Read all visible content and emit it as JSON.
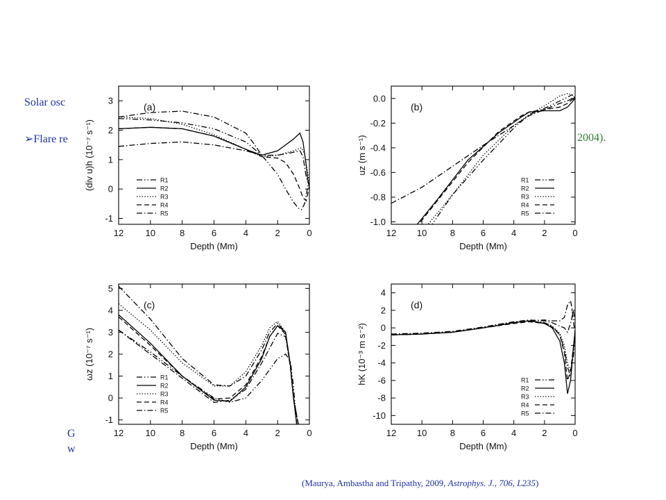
{
  "background_text": {
    "line1": "Solar osc",
    "line2_bullet": "➢",
    "line2_prefix": "Flare re",
    "line2_suffix": "2004).",
    "caption1": "G",
    "caption2": "w"
  },
  "citation": {
    "authors": "(Maurya, Ambastha and Tripathy, 2009, ",
    "journal": "Astrophys. J., 706, L235",
    "close": ")"
  },
  "legend_labels": [
    "R1",
    "R2",
    "R3",
    "R4",
    "R5"
  ],
  "chart_data": [
    {
      "type": "line",
      "panel_label": "(a)",
      "xlabel": "Depth (Mm)",
      "ylabel": "(div u)h (10⁻⁷ s⁻¹)",
      "xlim": [
        12,
        0
      ],
      "ylim": [
        -1.2,
        3.5
      ],
      "xticks": [
        12,
        10,
        8,
        6,
        4,
        2,
        0
      ],
      "yticks": [
        -1,
        0,
        1,
        2,
        3
      ],
      "legend": "lower-left",
      "series": [
        {
          "name": "R1",
          "dash": "dashdotdot",
          "x": [
            12,
            10,
            8,
            6,
            4,
            3,
            2,
            1.5,
            1,
            0.7,
            0.5,
            0.3,
            0.1,
            0
          ],
          "y": [
            2.4,
            2.35,
            2.25,
            2.05,
            1.6,
            1.15,
            0.5,
            0.0,
            -0.45,
            -0.65,
            -0.7,
            -0.5,
            0.1,
            0.3
          ]
        },
        {
          "name": "R2",
          "dash": "solid",
          "x": [
            12,
            10,
            8,
            6,
            4,
            3,
            2,
            1,
            0.6,
            0.4,
            0.2,
            0.1,
            0
          ],
          "y": [
            2.05,
            2.1,
            2.05,
            1.8,
            1.35,
            1.15,
            1.3,
            1.7,
            1.9,
            1.6,
            0.8,
            0.3,
            0.1
          ]
        },
        {
          "name": "R3",
          "dash": "dotted",
          "x": [
            12,
            10,
            8,
            6,
            4,
            3,
            2,
            1,
            0.5,
            0.3,
            0.1,
            0
          ],
          "y": [
            2.45,
            2.4,
            2.2,
            1.85,
            1.35,
            1.1,
            1.15,
            1.3,
            1.4,
            1.2,
            0.5,
            0.2
          ]
        },
        {
          "name": "R4",
          "dash": "dashed",
          "x": [
            12,
            10,
            8,
            6,
            4,
            3,
            2,
            1.5,
            1,
            0.6,
            0.4,
            0.2,
            0
          ],
          "y": [
            2.05,
            2.1,
            2.05,
            1.8,
            1.35,
            1.1,
            1.05,
            0.9,
            0.5,
            0.0,
            -0.3,
            -0.4,
            0.1
          ]
        },
        {
          "name": "R5",
          "dash": "dashdot",
          "x": [
            12,
            10,
            8,
            6,
            4,
            3,
            2,
            1,
            0.6,
            0.4,
            0.2,
            0
          ],
          "y": [
            1.45,
            1.55,
            1.6,
            1.5,
            1.3,
            1.15,
            1.15,
            1.25,
            1.3,
            1.1,
            0.4,
            0.1
          ]
        },
        {
          "name": "",
          "dash": "dashdot",
          "x": [
            12,
            10,
            8,
            6,
            4,
            3.5,
            3
          ],
          "y": [
            2.45,
            2.6,
            2.65,
            2.45,
            1.9,
            1.55,
            1.15
          ]
        }
      ]
    },
    {
      "type": "line",
      "panel_label": "(b)",
      "xlabel": "Depth (Mm)",
      "ylabel": "uz (m s⁻¹)",
      "xlim": [
        12,
        0
      ],
      "ylim": [
        -1.02,
        0.1
      ],
      "xticks": [
        12,
        10,
        8,
        6,
        4,
        2,
        0
      ],
      "yticks": [
        -1.0,
        -0.8,
        -0.6,
        -0.4,
        -0.2,
        0.0
      ],
      "legend": "lower-right",
      "series": [
        {
          "name": "R1",
          "dash": "dashdotdot",
          "x": [
            9.5,
            8,
            6,
            4,
            3,
            2,
            1.5,
            1,
            0.5,
            0.2,
            0
          ],
          "y": [
            -1.05,
            -0.78,
            -0.5,
            -0.24,
            -0.13,
            -0.08,
            -0.05,
            -0.02,
            0.01,
            0.03,
            0.0
          ]
        },
        {
          "name": "R2",
          "dash": "solid",
          "x": [
            10.5,
            9,
            7,
            5,
            3.5,
            3,
            2,
            1,
            0.5,
            0.2,
            0
          ],
          "y": [
            -1.05,
            -0.82,
            -0.5,
            -0.28,
            -0.15,
            -0.11,
            -0.1,
            -0.1,
            -0.07,
            -0.03,
            0.0
          ]
        },
        {
          "name": "R3",
          "dash": "dotted",
          "x": [
            9.8,
            8,
            6,
            4,
            3,
            2,
            1,
            0.5,
            0.2,
            0
          ],
          "y": [
            -1.05,
            -0.78,
            -0.46,
            -0.22,
            -0.13,
            -0.06,
            0.02,
            0.04,
            0.03,
            0.0
          ]
        },
        {
          "name": "R4",
          "dash": "dashed",
          "x": [
            10.4,
            9,
            7,
            5,
            3.5,
            3,
            2,
            1,
            0.5,
            0.2,
            0
          ],
          "y": [
            -1.05,
            -0.83,
            -0.52,
            -0.27,
            -0.14,
            -0.11,
            -0.09,
            -0.07,
            -0.04,
            -0.01,
            0.0
          ]
        },
        {
          "name": "R5",
          "dash": "dashdot",
          "x": [
            12,
            10,
            8,
            6,
            4,
            3,
            2,
            1,
            0.5,
            0.2,
            0
          ],
          "y": [
            -0.85,
            -0.72,
            -0.55,
            -0.38,
            -0.22,
            -0.14,
            -0.09,
            -0.04,
            -0.02,
            0.0,
            0.0
          ]
        }
      ]
    },
    {
      "type": "line",
      "panel_label": "(c)",
      "xlabel": "Depth (Mm)",
      "ylabel": "ωz (10⁻⁷ s⁻¹)",
      "xlim": [
        12,
        0
      ],
      "ylim": [
        -1.2,
        5.2
      ],
      "xticks": [
        12,
        10,
        8,
        6,
        4,
        2,
        0
      ],
      "yticks": [
        -1,
        0,
        1,
        2,
        3,
        4,
        5
      ],
      "legend": "lower-left",
      "series": [
        {
          "name": "R1",
          "dash": "dashdotdot",
          "x": [
            12,
            10,
            8,
            6,
            5,
            4,
            3,
            2,
            1.5,
            1.2,
            1,
            0.8
          ],
          "y": [
            3.1,
            2.1,
            1.0,
            0.0,
            -0.2,
            0.0,
            0.8,
            1.8,
            2.0,
            1.7,
            0.5,
            -1.2
          ]
        },
        {
          "name": "R2",
          "dash": "solid",
          "x": [
            12,
            10,
            8,
            6,
            5,
            4,
            3,
            2.5,
            2,
            1.5,
            1.2,
            1,
            0.8
          ],
          "y": [
            3.8,
            2.5,
            1.0,
            -0.1,
            -0.15,
            0.5,
            1.8,
            2.8,
            3.3,
            3.0,
            1.5,
            0.0,
            -1.2
          ]
        },
        {
          "name": "R3",
          "dash": "dotted",
          "x": [
            12,
            10,
            8,
            6,
            5,
            4,
            3,
            2.5,
            2,
            1.5,
            1.2,
            1,
            0.7
          ],
          "y": [
            4.3,
            3.1,
            1.6,
            0.55,
            0.55,
            1.2,
            2.4,
            3.2,
            3.5,
            3.0,
            1.5,
            0.0,
            -1.2
          ]
        },
        {
          "name": "R4",
          "dash": "dashed",
          "x": [
            12,
            10,
            8,
            6,
            5,
            4,
            3,
            2.5,
            2,
            1.5,
            1.2,
            1,
            0.7
          ],
          "y": [
            3.7,
            2.4,
            1.0,
            -0.05,
            0.0,
            0.6,
            1.9,
            2.8,
            3.3,
            2.9,
            1.4,
            0.0,
            -1.2
          ]
        },
        {
          "name": "R5",
          "dash": "dashdot",
          "x": [
            12,
            10,
            8,
            6,
            5,
            4,
            3,
            2,
            1.5,
            1.2,
            1,
            0.8
          ],
          "y": [
            3.1,
            2.0,
            0.9,
            -0.2,
            -0.1,
            0.4,
            1.6,
            2.95,
            2.8,
            1.5,
            0.0,
            -1.2
          ]
        },
        {
          "name": "",
          "dash": "dashdot",
          "x": [
            12,
            10,
            8,
            6,
            5,
            4,
            3,
            2.5,
            2,
            1.5,
            1.2,
            1,
            0.7
          ],
          "y": [
            5.1,
            3.6,
            1.8,
            0.6,
            0.55,
            1.0,
            2.2,
            3.0,
            3.4,
            3.0,
            1.5,
            0.0,
            -1.2
          ]
        }
      ]
    },
    {
      "type": "line",
      "panel_label": "(d)",
      "xlabel": "Depth (Mm)",
      "ylabel": "hK (10⁻³ m s⁻²)",
      "xlim": [
        12,
        0
      ],
      "ylim": [
        -11,
        5
      ],
      "xticks": [
        12,
        10,
        8,
        6,
        4,
        2,
        0
      ],
      "yticks": [
        -10,
        -8,
        -6,
        -4,
        -2,
        0,
        2,
        4
      ],
      "legend": "lower-right",
      "series": [
        {
          "name": "R1",
          "dash": "dashdotdot",
          "x": [
            12,
            10,
            8,
            6,
            4,
            3,
            2,
            1.5,
            1,
            0.7,
            0.5,
            0.3,
            0.1,
            0
          ],
          "y": [
            -0.8,
            -0.7,
            -0.5,
            0.0,
            0.6,
            0.8,
            0.6,
            0.2,
            -0.8,
            -2.5,
            -4.5,
            -5.5,
            -3.0,
            -0.5
          ]
        },
        {
          "name": "R2",
          "dash": "solid",
          "x": [
            12,
            10,
            8,
            6,
            4,
            3,
            2,
            1.5,
            1,
            0.7,
            0.5,
            0.3,
            0.1,
            0
          ],
          "y": [
            -0.8,
            -0.7,
            -0.5,
            0.0,
            0.6,
            0.8,
            0.5,
            0.0,
            -1.5,
            -4.0,
            -7.5,
            -6.0,
            -2.0,
            -0.3
          ]
        },
        {
          "name": "R3",
          "dash": "dotted",
          "x": [
            12,
            10,
            8,
            6,
            4,
            3,
            2,
            1.5,
            1,
            0.7,
            0.5,
            0.3,
            0.1,
            0
          ],
          "y": [
            -0.8,
            -0.7,
            -0.5,
            0.0,
            0.6,
            0.8,
            0.6,
            0.2,
            -0.6,
            -2.0,
            -4.0,
            -5.0,
            -2.5,
            -0.4
          ]
        },
        {
          "name": "R4",
          "dash": "dashed",
          "x": [
            12,
            10,
            8,
            6,
            4,
            3,
            2,
            1.5,
            1,
            0.7,
            0.5,
            0.3,
            0.1,
            0
          ],
          "y": [
            -0.8,
            -0.7,
            -0.5,
            0.0,
            0.5,
            0.7,
            0.5,
            0.1,
            -0.8,
            -2.8,
            -6.0,
            -5.0,
            -2.0,
            -0.3
          ]
        },
        {
          "name": "R5",
          "dash": "dashdot",
          "x": [
            12,
            10,
            8,
            6,
            4,
            3,
            2,
            1.5,
            1,
            0.7,
            0.5,
            0.3,
            0.1,
            0
          ],
          "y": [
            -0.7,
            -0.6,
            -0.4,
            0.1,
            0.7,
            0.9,
            0.8,
            0.6,
            0.2,
            0.0,
            -0.5,
            0.5,
            2.0,
            0.5
          ]
        },
        {
          "name": "",
          "dash": "dashdot",
          "x": [
            12,
            10,
            8,
            6,
            4,
            3,
            2,
            1.5,
            1,
            0.7,
            0.5,
            0.3,
            0.2,
            0.1,
            0
          ],
          "y": [
            -0.8,
            -0.7,
            -0.5,
            0.0,
            0.6,
            0.8,
            0.9,
            0.8,
            0.8,
            1.2,
            2.6,
            3.1,
            2.2,
            0.5,
            -0.3
          ]
        }
      ]
    }
  ]
}
